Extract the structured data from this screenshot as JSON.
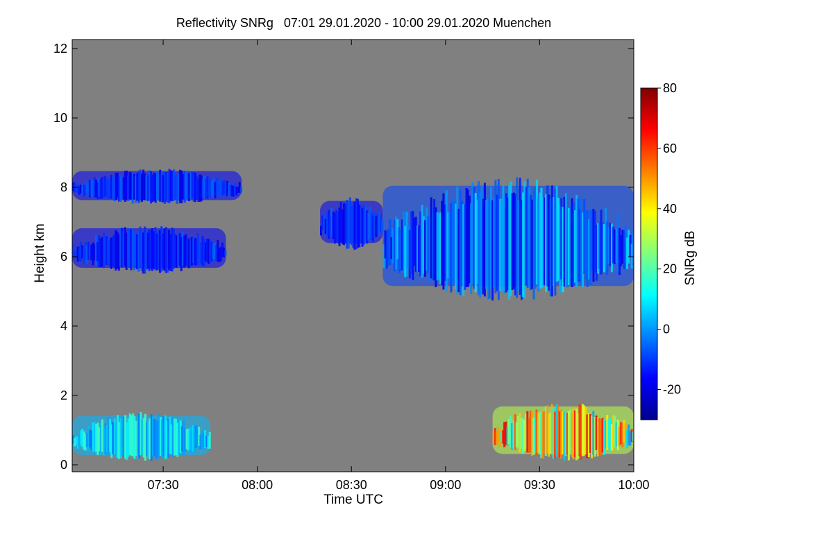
{
  "chart_data": {
    "type": "heatmap",
    "title": "Reflectivity SNRg   07:01 29.01.2020 - 10:00 29.01.2020 Muenchen",
    "xlabel": "Time UTC",
    "ylabel": "Height km",
    "xlim": [
      "07:01",
      "10:00"
    ],
    "ylim": [
      0,
      12
    ],
    "x_ticks": [
      "07:30",
      "08:00",
      "08:30",
      "09:00",
      "09:30",
      "10:00"
    ],
    "y_ticks": [
      "0",
      "2",
      "4",
      "6",
      "8",
      "10",
      "12"
    ],
    "background_color": "#808080",
    "colorbar": {
      "label": "SNRg dB",
      "range": [
        -30,
        80
      ],
      "ticks": [
        "-20",
        "0",
        "20",
        "40",
        "60",
        "80"
      ],
      "colormap": "jet"
    },
    "features": [
      {
        "name": "upper cloud layer (07:01-07:55)",
        "time": [
          "07:01",
          "07:55"
        ],
        "height_km": [
          7.5,
          8.6
        ],
        "snrg_db": [
          -20,
          -5
        ]
      },
      {
        "name": "mid cloud layer (07:01-07:50)",
        "time": [
          "07:01",
          "07:50"
        ],
        "height_km": [
          5.5,
          7.0
        ],
        "snrg_db": [
          -20,
          -5
        ]
      },
      {
        "name": "cloud patches (08:20-08:40)",
        "time": [
          "08:20",
          "08:40"
        ],
        "height_km": [
          6.2,
          7.8
        ],
        "snrg_db": [
          -20,
          -5
        ]
      },
      {
        "name": "thick cloud (08:40-10:00)",
        "time": [
          "08:40",
          "10:00"
        ],
        "height_km": [
          4.7,
          8.5
        ],
        "snrg_db": [
          -20,
          10
        ]
      },
      {
        "name": "low precipitation (07:01-07:45)",
        "time": [
          "07:01",
          "07:45"
        ],
        "height_km": [
          0.1,
          1.6
        ],
        "snrg_db": [
          -5,
          20
        ]
      },
      {
        "name": "low precipitation (09:15-10:00)",
        "time": [
          "09:15",
          "10:00"
        ],
        "height_km": [
          0.1,
          1.9
        ],
        "snrg_db": [
          0,
          70
        ]
      }
    ]
  }
}
